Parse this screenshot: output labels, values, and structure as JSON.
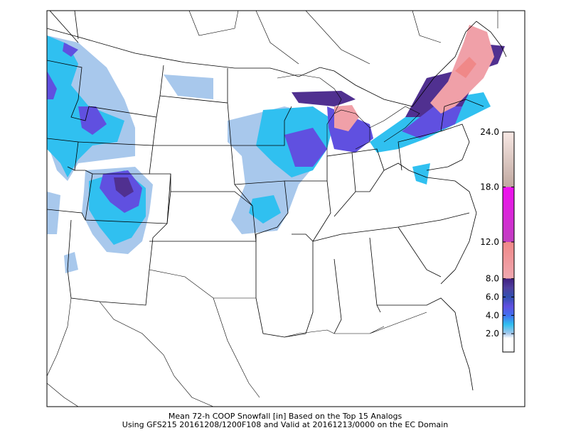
{
  "caption": [
    "Mean 72-h COOP Snowfall [in] Based on the Top 15 Analogs",
    "Using GFS215 20161208/1200F108 and Valid at 20161213/0000 on the EC Domain"
  ],
  "colorbar": {
    "lim": [
      0,
      24
    ],
    "ticks": [
      {
        "value": 2,
        "label": "2.0"
      },
      {
        "value": 4,
        "label": "4.0"
      },
      {
        "value": 6,
        "label": "6.0"
      },
      {
        "value": 8,
        "label": "8.0"
      },
      {
        "value": 12,
        "label": "12.0"
      },
      {
        "value": 18,
        "label": "18.0"
      },
      {
        "value": 24,
        "label": "24.0"
      }
    ]
  }
}
